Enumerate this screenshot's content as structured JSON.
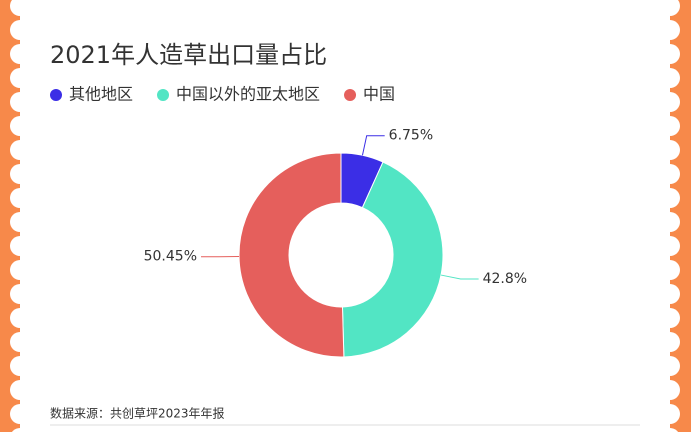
{
  "chart_data": {
    "type": "donut",
    "title": "2021年人造草出口量占比",
    "categories": [
      "其他地区",
      "中国以外的亚太地区",
      "中国"
    ],
    "values": [
      6.75,
      42.8,
      50.45
    ],
    "value_labels": [
      "6.75%",
      "42.8%",
      "50.45%"
    ],
    "colors": [
      "#3b2ee6",
      "#52e5c4",
      "#e55f5c"
    ],
    "source": "数据来源：共创草坪2023年年报"
  }
}
